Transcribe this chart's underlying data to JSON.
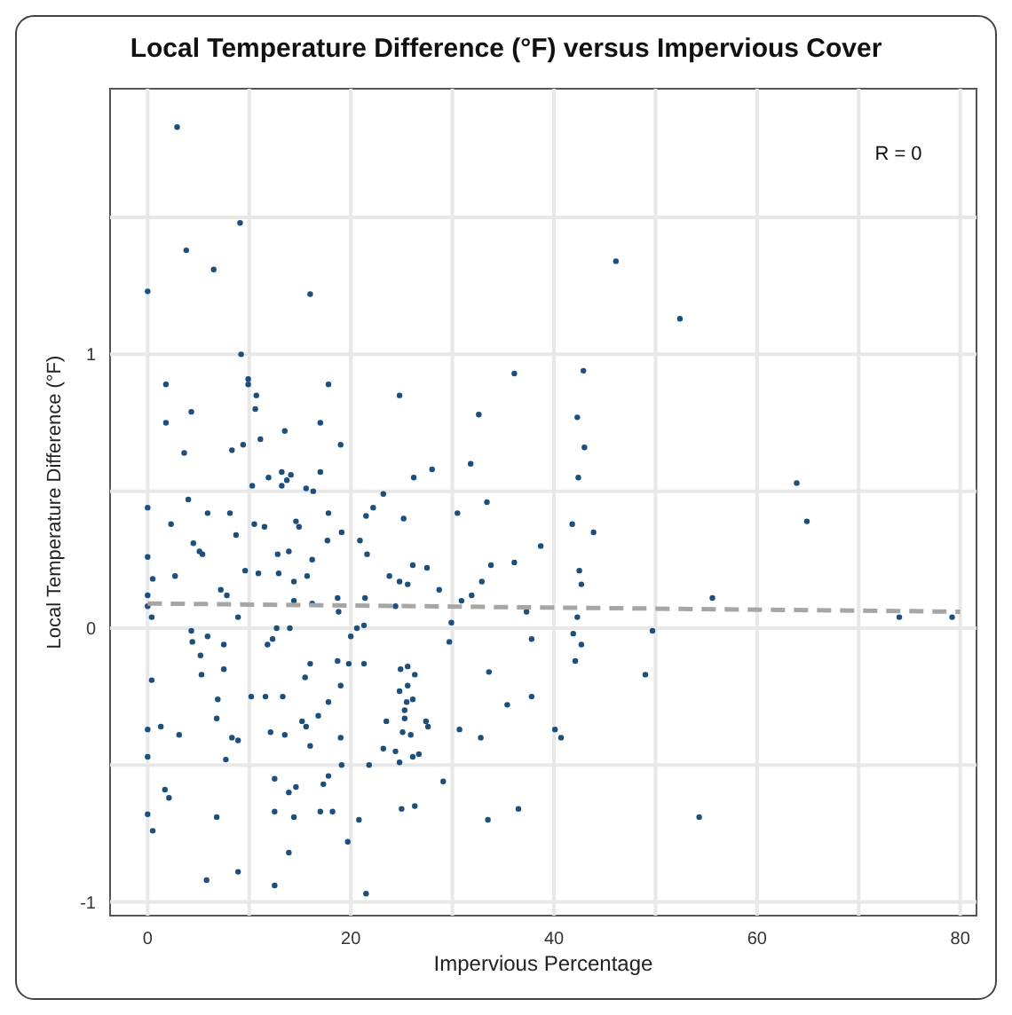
{
  "chart_data": {
    "type": "scatter",
    "title": "Local Temperature Difference (°F) versus Impervious Cover",
    "xlabel": "Impervious Percentage",
    "ylabel": "Local Temperature Difference (°F)",
    "annotations": [
      "R = 0"
    ],
    "xlim": [
      -3.7,
      81.6
    ],
    "ylim": [
      -1.05,
      1.97
    ],
    "xticks": [
      0,
      {
        "value": 10,
        "label": null
      },
      20,
      {
        "value": 30,
        "label": null
      },
      40,
      {
        "value": 50,
        "label": null
      },
      60,
      {
        "value": 70,
        "label": null
      },
      80
    ],
    "yticks": [
      -1,
      {
        "value": -0.5,
        "label": null
      },
      0,
      {
        "value": 0.5,
        "label": null
      },
      1,
      {
        "value": 1.5,
        "label": null
      }
    ],
    "grid": true,
    "series": [
      {
        "marker": "circle",
        "color": "#1d4f7e",
        "x": [
          2.9,
          9.1,
          3.8,
          6.5,
          0,
          16.0,
          9.2,
          1.8,
          9.9,
          9.9,
          17.8,
          10.7,
          4.3,
          10.6,
          1.8,
          17.0,
          13.5,
          19.0,
          11.1,
          9.4,
          8.3,
          3.6,
          13.2,
          14.1,
          17.0,
          11.9,
          13.7,
          10.3,
          13.2,
          15.6,
          16.3,
          4.0,
          0,
          5.9,
          8.1,
          2.3,
          14.6,
          14.9,
          17.8,
          21.5,
          22.2,
          10.5,
          11.5,
          8.7,
          19.1,
          17.7,
          20.9,
          4.5,
          5.1,
          5.4,
          0,
          12.8,
          13.9,
          21.6,
          16.2,
          9.6,
          10.9,
          12.9,
          15.7,
          2.7,
          0.5,
          14.4,
          7.2,
          7.8,
          0,
          21.4,
          18.7,
          14.4,
          16.2,
          0,
          18.8,
          0.4,
          8.9,
          4.3,
          14.0,
          12.7,
          20.6,
          21.3,
          20.0,
          5.9,
          4.4,
          7.5,
          12.3,
          11.8,
          5.2,
          16.0,
          18.7,
          19.8,
          21.3,
          7.5,
          5.3,
          15.5,
          0.4,
          19.0,
          10.2,
          11.6,
          13.3,
          6.9,
          17.8,
          6.8,
          15.2,
          15.6,
          16.8,
          0,
          1.3,
          3.1,
          12.1,
          13.5,
          8.3,
          8.9,
          19.0,
          16.0,
          0,
          7.7,
          19.1,
          21.8,
          17.8,
          12.5,
          17.3,
          14.6,
          1.7,
          13.9,
          2.1,
          0,
          6.8,
          12.5,
          14.4,
          17.0,
          18.2,
          20.8,
          0.5,
          19.7,
          13.9,
          8.9,
          5.8,
          12.5,
          21.5,
          46.1,
          24.8,
          36.1,
          42.9,
          32.6,
          42.3,
          43.0,
          28.0,
          26.2,
          31.8,
          42.4,
          23.2,
          33.4,
          25.2,
          30.5,
          41.8,
          43.9,
          38.7,
          26.1,
          27.5,
          33.8,
          36.1,
          42.5,
          23.8,
          24.8,
          25.6,
          32.9,
          42.7,
          28.7,
          31.9,
          30.9,
          24.4,
          37.3,
          42.3,
          29.9,
          41.9,
          29.7,
          37.8,
          42.7,
          42.1,
          24.9,
          25.6,
          26.3,
          33.6,
          24.8,
          25.6,
          26.1,
          25.5,
          37.8,
          35.4,
          25.3,
          25.3,
          23.5,
          27.4,
          27.6,
          25.1,
          25.9,
          30.7,
          32.8,
          40.1,
          40.7,
          23.2,
          24.4,
          26.7,
          26.1,
          24.8,
          29.1,
          25.0,
          26.3,
          36.5,
          33.5,
          52.4,
          63.9,
          64.9,
          55.6,
          74.0,
          79.2,
          49.7,
          49.0,
          54.3
        ],
        "values": [
          1.83,
          1.48,
          1.38,
          1.31,
          1.23,
          1.22,
          1.0,
          0.89,
          0.91,
          0.89,
          0.89,
          0.85,
          0.79,
          0.8,
          0.75,
          0.75,
          0.72,
          0.67,
          0.69,
          0.67,
          0.65,
          0.64,
          0.57,
          0.56,
          0.57,
          0.55,
          0.54,
          0.52,
          0.52,
          0.51,
          0.5,
          0.47,
          0.44,
          0.42,
          0.42,
          0.38,
          0.39,
          0.37,
          0.42,
          0.41,
          0.44,
          0.38,
          0.37,
          0.34,
          0.35,
          0.32,
          0.32,
          0.31,
          0.28,
          0.27,
          0.26,
          0.27,
          0.28,
          0.27,
          0.25,
          0.21,
          0.2,
          0.2,
          0.19,
          0.19,
          0.18,
          0.17,
          0.14,
          0.12,
          0.12,
          0.11,
          0.11,
          0.1,
          0.09,
          0.08,
          0.06,
          0.04,
          0.04,
          -0.01,
          0.0,
          0.0,
          0.0,
          0.01,
          -0.03,
          -0.03,
          -0.05,
          -0.06,
          -0.04,
          -0.06,
          -0.1,
          -0.13,
          -0.12,
          -0.13,
          -0.13,
          -0.15,
          -0.17,
          -0.18,
          -0.19,
          -0.21,
          -0.25,
          -0.25,
          -0.25,
          -0.26,
          -0.27,
          -0.33,
          -0.34,
          -0.36,
          -0.32,
          -0.37,
          -0.36,
          -0.39,
          -0.38,
          -0.39,
          -0.4,
          -0.41,
          -0.4,
          -0.43,
          -0.47,
          -0.48,
          -0.5,
          -0.5,
          -0.54,
          -0.55,
          -0.57,
          -0.58,
          -0.59,
          -0.6,
          -0.62,
          -0.68,
          -0.69,
          -0.67,
          -0.69,
          -0.67,
          -0.67,
          -0.7,
          -0.74,
          -0.78,
          -0.82,
          -0.89,
          -0.92,
          -0.94,
          -0.97,
          1.34,
          0.85,
          0.93,
          0.94,
          0.78,
          0.77,
          0.66,
          0.58,
          0.55,
          0.6,
          0.55,
          0.49,
          0.46,
          0.4,
          0.42,
          0.38,
          0.35,
          0.3,
          0.23,
          0.22,
          0.23,
          0.24,
          0.21,
          0.19,
          0.17,
          0.16,
          0.17,
          0.16,
          0.14,
          0.12,
          0.1,
          0.08,
          0.06,
          0.04,
          0.02,
          -0.02,
          -0.05,
          -0.04,
          -0.06,
          -0.12,
          -0.15,
          -0.14,
          -0.17,
          -0.16,
          -0.23,
          -0.21,
          -0.26,
          -0.27,
          -0.25,
          -0.28,
          -0.3,
          -0.33,
          -0.34,
          -0.34,
          -0.36,
          -0.38,
          -0.39,
          -0.37,
          -0.4,
          -0.37,
          -0.4,
          -0.44,
          -0.45,
          -0.46,
          -0.47,
          -0.49,
          -0.56,
          -0.66,
          -0.65,
          -0.66,
          -0.7,
          1.13,
          0.53,
          0.39,
          0.11,
          0.04,
          0.04,
          -0.01,
          -0.17,
          -0.69
        ]
      },
      {
        "type": "line",
        "color": "#a6a6a6",
        "line_style": "dashed",
        "x": [
          0,
          80
        ],
        "values": [
          0.09,
          0.06
        ]
      }
    ]
  }
}
